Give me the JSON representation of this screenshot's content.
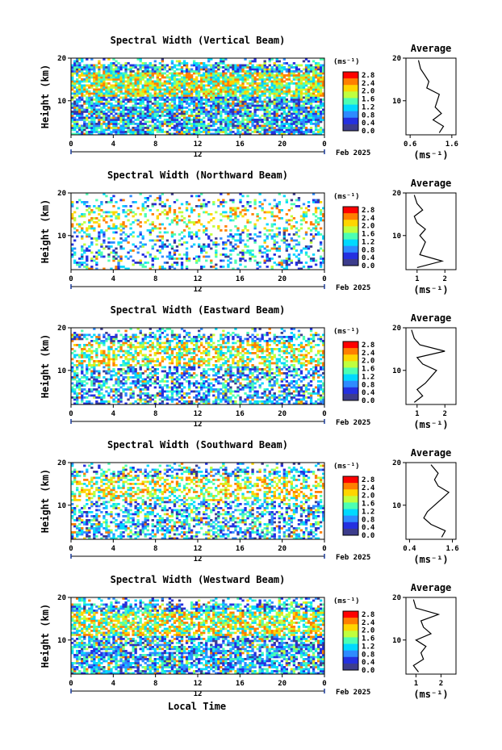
{
  "footer": {
    "xlabel": "Local Time"
  },
  "colorbar": {
    "unit_label": "(ms⁻¹)",
    "ticks": [
      "2.8",
      "2.4",
      "2.0",
      "1.6",
      "1.2",
      "0.8",
      "0.4",
      "0.0"
    ],
    "colors": [
      "#ff0000",
      "#ff7f00",
      "#ffd500",
      "#c0ff3e",
      "#4cffb3",
      "#00d9ff",
      "#2e8bff",
      "#2430e0",
      "#3c3c8c"
    ]
  },
  "chart_data": [
    {
      "type": "heatmap",
      "title": "Spectral Width (Vertical Beam)",
      "ylabel": "Height (km)",
      "x_ticks": [
        "0",
        "4",
        "8",
        "12",
        "16",
        "20",
        "0"
      ],
      "date_label": "12",
      "month_label": "Feb 2025",
      "ylim": [
        2,
        20
      ],
      "y_ticks": [
        "20",
        "10"
      ],
      "clim": [
        0.0,
        3.0
      ],
      "density": 0.82,
      "average_profile": {
        "title": "Average",
        "xlabel": "(ms⁻¹)",
        "x_ticks": [
          "0.6",
          "1.6"
        ],
        "xlim": [
          0.5,
          1.7
        ],
        "heights": [
          2.5,
          4,
          5.5,
          7,
          8.5,
          10,
          11.5,
          13,
          14.5,
          16,
          17.5,
          19.5
        ],
        "values": [
          1.3,
          1.4,
          1.15,
          1.35,
          1.2,
          1.25,
          1.3,
          1.0,
          1.05,
          0.95,
          0.85,
          0.8
        ]
      }
    },
    {
      "type": "heatmap",
      "title": "Spectral Width (Northward Beam)",
      "ylabel": "Height (km)",
      "x_ticks": [
        "0",
        "4",
        "8",
        "12",
        "16",
        "20",
        "0"
      ],
      "date_label": "12",
      "month_label": "Feb 2025",
      "ylim": [
        2,
        20
      ],
      "y_ticks": [
        "20",
        "10"
      ],
      "clim": [
        0.0,
        3.0
      ],
      "density": 0.3,
      "average_profile": {
        "title": "Average",
        "xlabel": "(ms⁻¹)",
        "x_ticks": [
          "1",
          "2"
        ],
        "xlim": [
          0.6,
          2.4
        ],
        "heights": [
          2.5,
          4,
          5.5,
          7,
          8.5,
          10,
          11.5,
          13,
          14.5,
          16,
          17.5,
          19.5
        ],
        "values": [
          1.0,
          1.9,
          1.1,
          1.2,
          1.3,
          1.1,
          1.3,
          1.0,
          0.9,
          1.2,
          1.0,
          0.9
        ]
      }
    },
    {
      "type": "heatmap",
      "title": "Spectral Width (Eastward Beam)",
      "ylabel": "Height (km)",
      "x_ticks": [
        "0",
        "4",
        "8",
        "12",
        "16",
        "20",
        "0"
      ],
      "date_label": "12",
      "month_label": "Feb 2025",
      "ylim": [
        2,
        20
      ],
      "y_ticks": [
        "20",
        "10"
      ],
      "clim": [
        0.0,
        3.0
      ],
      "density": 0.55,
      "average_profile": {
        "title": "Average",
        "xlabel": "(ms⁻¹)",
        "x_ticks": [
          "1",
          "2"
        ],
        "xlim": [
          0.6,
          2.4
        ],
        "heights": [
          2.5,
          4,
          5.5,
          7,
          8.5,
          10,
          11.5,
          13,
          14.5,
          16,
          17.5,
          19.5
        ],
        "values": [
          0.9,
          1.2,
          1.0,
          1.3,
          1.5,
          1.7,
          1.2,
          1.0,
          2.0,
          1.1,
          0.9,
          0.8
        ]
      }
    },
    {
      "type": "heatmap",
      "title": "Spectral Width (Southward Beam)",
      "ylabel": "Height (km)",
      "x_ticks": [
        "0",
        "4",
        "8",
        "12",
        "16",
        "20",
        "0"
      ],
      "date_label": "12",
      "month_label": "Feb 2025",
      "ylim": [
        2,
        20
      ],
      "y_ticks": [
        "20",
        "10"
      ],
      "clim": [
        0.0,
        3.0
      ],
      "density": 0.5,
      "average_profile": {
        "title": "Average",
        "xlabel": "(ms⁻¹)",
        "x_ticks": [
          "0.4",
          "1.6"
        ],
        "xlim": [
          0.3,
          1.7
        ],
        "heights": [
          2.5,
          4,
          5.5,
          7,
          8.5,
          10,
          11.5,
          13,
          14.5,
          16,
          17.5,
          19.5
        ],
        "values": [
          1.3,
          1.4,
          1.0,
          0.8,
          0.9,
          1.1,
          1.3,
          1.5,
          1.2,
          1.1,
          1.2,
          1.0
        ]
      }
    },
    {
      "type": "heatmap",
      "title": "Spectral Width (Westward Beam)",
      "ylabel": "Height (km)",
      "x_ticks": [
        "0",
        "4",
        "8",
        "12",
        "16",
        "20",
        "0"
      ],
      "date_label": "12",
      "month_label": "Feb 2025",
      "ylim": [
        2,
        20
      ],
      "y_ticks": [
        "20",
        "10"
      ],
      "clim": [
        0.0,
        3.0
      ],
      "density": 0.72,
      "average_profile": {
        "title": "Average",
        "xlabel": "(ms⁻¹)",
        "x_ticks": [
          "1",
          "2"
        ],
        "xlim": [
          0.6,
          2.6
        ],
        "heights": [
          2.5,
          4,
          5.5,
          7,
          8.5,
          10,
          11.5,
          13,
          14.5,
          16,
          17.5,
          19.5
        ],
        "values": [
          1.1,
          0.9,
          1.3,
          1.2,
          1.4,
          1.0,
          1.6,
          1.3,
          1.2,
          1.9,
          1.0,
          0.9
        ]
      }
    }
  ]
}
